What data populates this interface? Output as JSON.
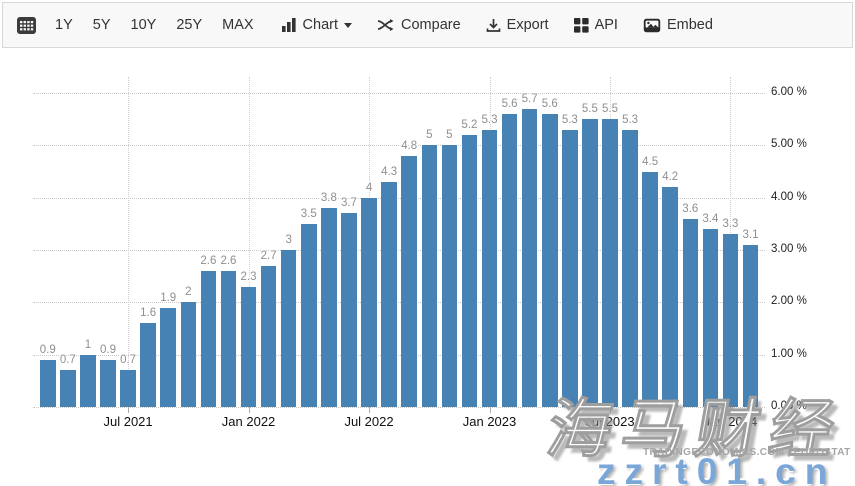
{
  "toolbar": {
    "ranges": [
      "1Y",
      "5Y",
      "10Y",
      "25Y",
      "MAX"
    ],
    "chart_label": "Chart",
    "compare_label": "Compare",
    "export_label": "Export",
    "api_label": "API",
    "embed_label": "Embed"
  },
  "chart_data": {
    "type": "bar",
    "title": "",
    "xlabel": "",
    "ylabel": "",
    "categories": [
      "Mar 2021",
      "Apr 2021",
      "May 2021",
      "Jun 2021",
      "Jul 2021",
      "Aug 2021",
      "Sep 2021",
      "Oct 2021",
      "Nov 2021",
      "Dec 2021",
      "Jan 2022",
      "Feb 2022",
      "Mar 2022",
      "Apr 2022",
      "May 2022",
      "Jun 2022",
      "Jul 2022",
      "Aug 2022",
      "Sep 2022",
      "Oct 2022",
      "Nov 2022",
      "Dec 2022",
      "Jan 2023",
      "Feb 2023",
      "Mar 2023",
      "Apr 2023",
      "May 2023",
      "Jun 2023",
      "Jul 2023",
      "Aug 2023",
      "Sep 2023",
      "Oct 2023",
      "Nov 2023",
      "Dec 2023",
      "Jan 2024",
      "Feb 2024"
    ],
    "values": [
      0.9,
      0.7,
      1,
      0.9,
      0.7,
      1.6,
      1.9,
      2,
      2.6,
      2.6,
      2.3,
      2.7,
      3,
      3.5,
      3.8,
      3.7,
      4,
      4.3,
      4.8,
      5,
      5,
      5.2,
      5.3,
      5.6,
      5.7,
      5.6,
      5.3,
      5.5,
      5.5,
      5.3,
      4.5,
      4.2,
      3.6,
      3.4,
      3.3,
      3.1
    ],
    "bar_labels": [
      "0.9",
      "0.7",
      "1",
      "0.9",
      "0.7",
      "1.6",
      "1.9",
      "2",
      "2.6",
      "2.6",
      "2.3",
      "2.7",
      "3",
      "3.5",
      "3.8",
      "3.7",
      "4",
      "4.3",
      "4.8",
      "5",
      "5",
      "5.2",
      "5.3",
      "5.6",
      "5.7",
      "5.6",
      "5.3",
      "5.5",
      "5.5",
      "5.3",
      "4.5",
      "4.2",
      "3.6",
      "3.4",
      "3.3",
      "3.1"
    ],
    "x_tick_labels": [
      "Jul 2021",
      "Jan 2022",
      "Jul 2022",
      "Jan 2023",
      "Jul 2023",
      "Jan 2024"
    ],
    "x_tick_indices": [
      4,
      10,
      16,
      22,
      28,
      34
    ],
    "y_tick_labels": [
      "0.00 %",
      "1.00 %",
      "2.00 %",
      "3.00 %",
      "4.00 %",
      "5.00 %",
      "6.00 %"
    ],
    "ylim": [
      0,
      6
    ],
    "grid": true,
    "legend": "none",
    "bar_color": "#4682b4"
  },
  "watermarks": {
    "site_attribution": "TRADINGECONOMICS.COM  |  EUROSTAT",
    "overlay_cn": "海马财经",
    "overlay_domain": "zzrt01.cn"
  }
}
